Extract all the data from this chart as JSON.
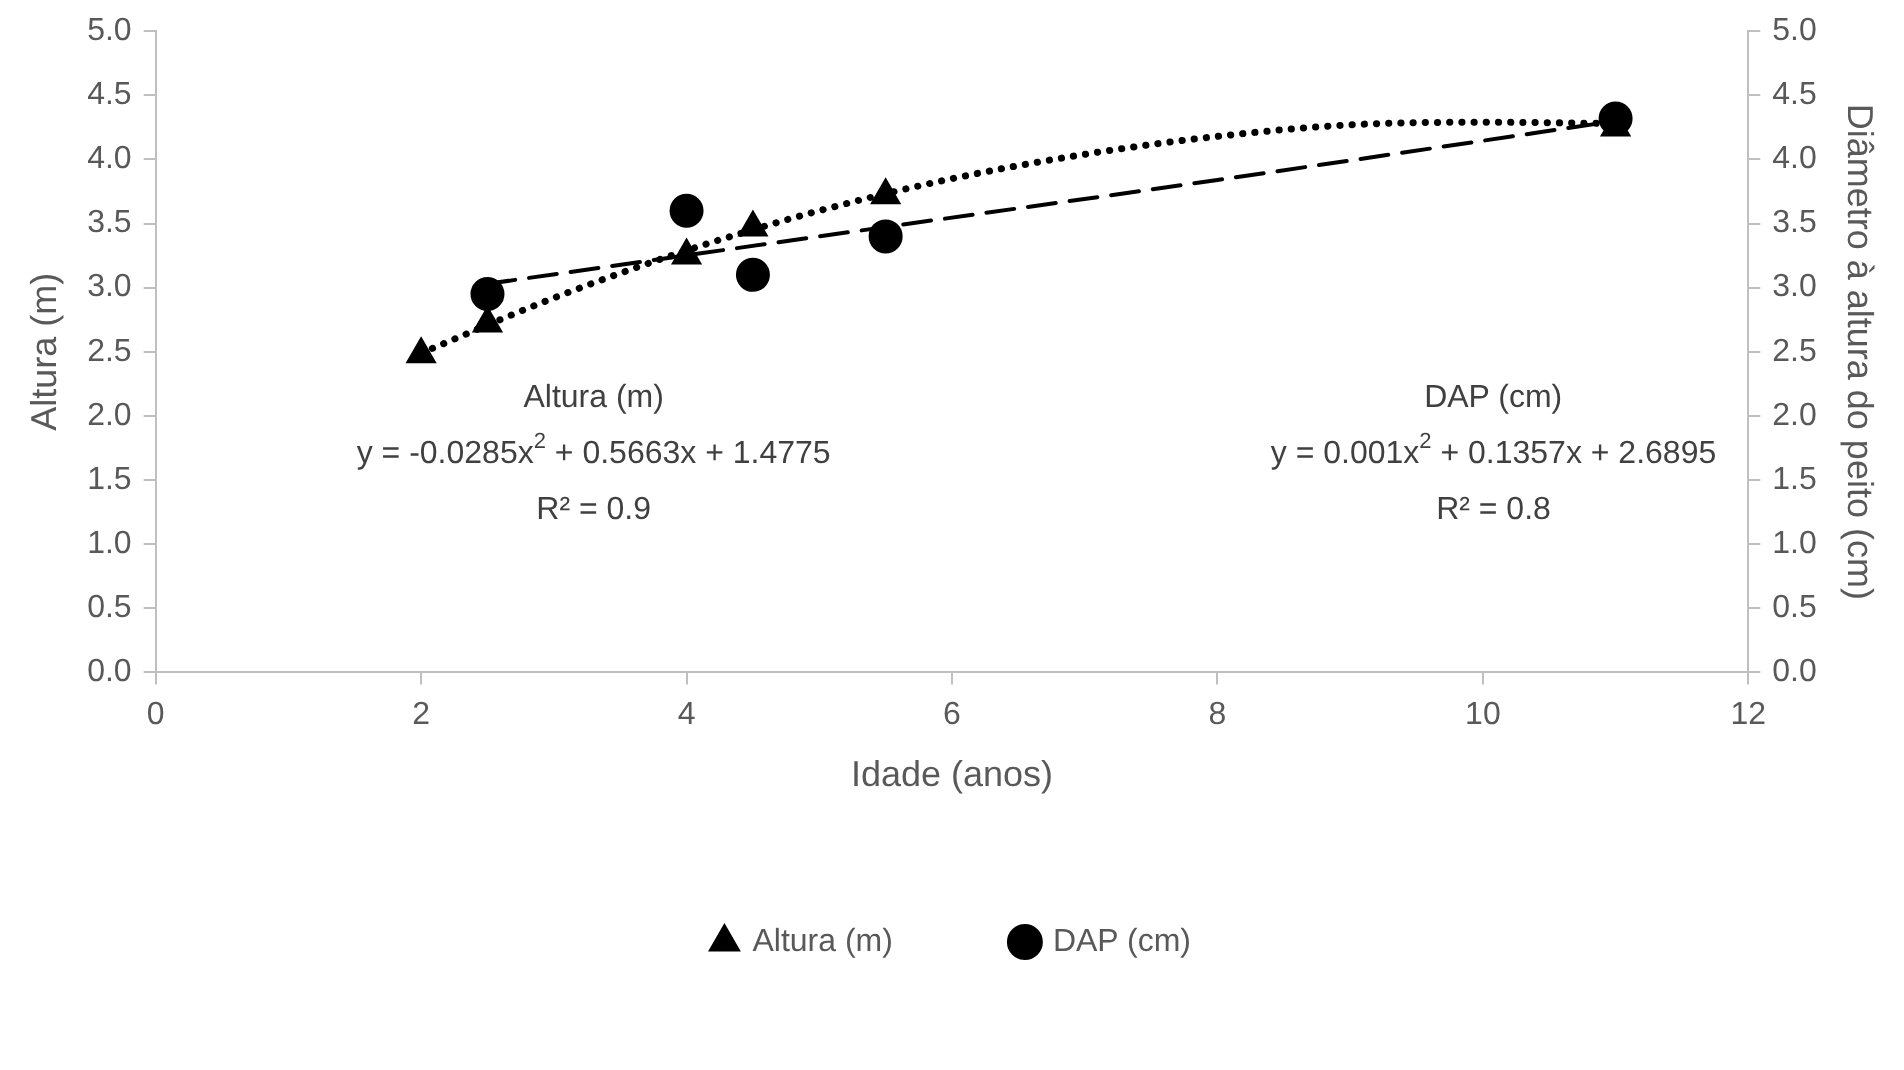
{
  "chart_data": {
    "type": "scatter",
    "xlabel": "Idade (anos)",
    "ylabel": "Altura (m)",
    "y2label": "Diâmetro à altura do peito (cm)",
    "xlim": [
      0,
      12
    ],
    "xticks": [
      0,
      2,
      4,
      6,
      8,
      10,
      12
    ],
    "ylim": [
      0,
      5
    ],
    "yticks": [
      {
        "value": 0,
        "label": "0.0"
      },
      {
        "value": 0.5,
        "label": "0.5"
      },
      {
        "value": 1,
        "label": "1.0"
      },
      {
        "value": 1.5,
        "label": "1.5"
      },
      {
        "value": 2,
        "label": "2.0"
      },
      {
        "value": 2.5,
        "label": "2.5"
      },
      {
        "value": 3,
        "label": "3.0"
      },
      {
        "value": 3.5,
        "label": "3.5"
      },
      {
        "value": 4,
        "label": "4.0"
      },
      {
        "value": 4.5,
        "label": "4.5"
      },
      {
        "value": 5,
        "label": "5.0"
      }
    ],
    "y2lim": [
      0,
      5
    ],
    "y2ticks": [
      {
        "value": 0,
        "label": "0.0"
      },
      {
        "value": 0.5,
        "label": "0.5"
      },
      {
        "value": 1,
        "label": "1.0"
      },
      {
        "value": 1.5,
        "label": "1.5"
      },
      {
        "value": 2,
        "label": "2.0"
      },
      {
        "value": 2.5,
        "label": "2.5"
      },
      {
        "value": 3,
        "label": "3.0"
      },
      {
        "value": 3.5,
        "label": "3.5"
      },
      {
        "value": 4,
        "label": "4.0"
      },
      {
        "value": 4.5,
        "label": "4.5"
      },
      {
        "value": 5,
        "label": "5.0"
      }
    ],
    "series": [
      {
        "name": "Altura (m)",
        "marker": "triangle",
        "color": "#000000",
        "x": [
          2,
          2.5,
          4,
          4.5,
          5.5,
          11
        ],
        "values": [
          2.48,
          2.72,
          3.25,
          3.47,
          3.72,
          4.25
        ]
      },
      {
        "name": "DAP (cm)",
        "marker": "circle",
        "color": "#000000",
        "axis": "y2",
        "x": [
          2.5,
          4,
          4.5,
          5.5,
          11
        ],
        "values": [
          2.95,
          3.6,
          3.1,
          3.4,
          4.32
        ]
      },
      {
        "type": "line",
        "marker": "none",
        "line_style": "dotted",
        "color": "#000000",
        "x": [
          2,
          3,
          4,
          5,
          6,
          7,
          8,
          9,
          10,
          11
        ],
        "values": [
          2.49,
          2.92,
          3.29,
          3.6,
          3.85,
          4.04,
          4.18,
          4.27,
          4.29,
          4.28
        ]
      },
      {
        "type": "line",
        "marker": "none",
        "line_style": "dashed",
        "color": "#000000",
        "axis": "y2",
        "x": [
          2.5,
          5,
          8,
          11
        ],
        "values": [
          3.03,
          3.4,
          3.84,
          4.3
        ]
      }
    ],
    "annotations": [
      "Altura (m)",
      "y = -0.0285x$^{2}$ + 0.5663x + 1.4775",
      "R² = 0.9",
      "DAP (cm)",
      "y = 0.001x$^{2}$ + 0.1357x + 2.6895",
      "R² = 0.8"
    ],
    "grid": false,
    "legend": "bottom"
  }
}
